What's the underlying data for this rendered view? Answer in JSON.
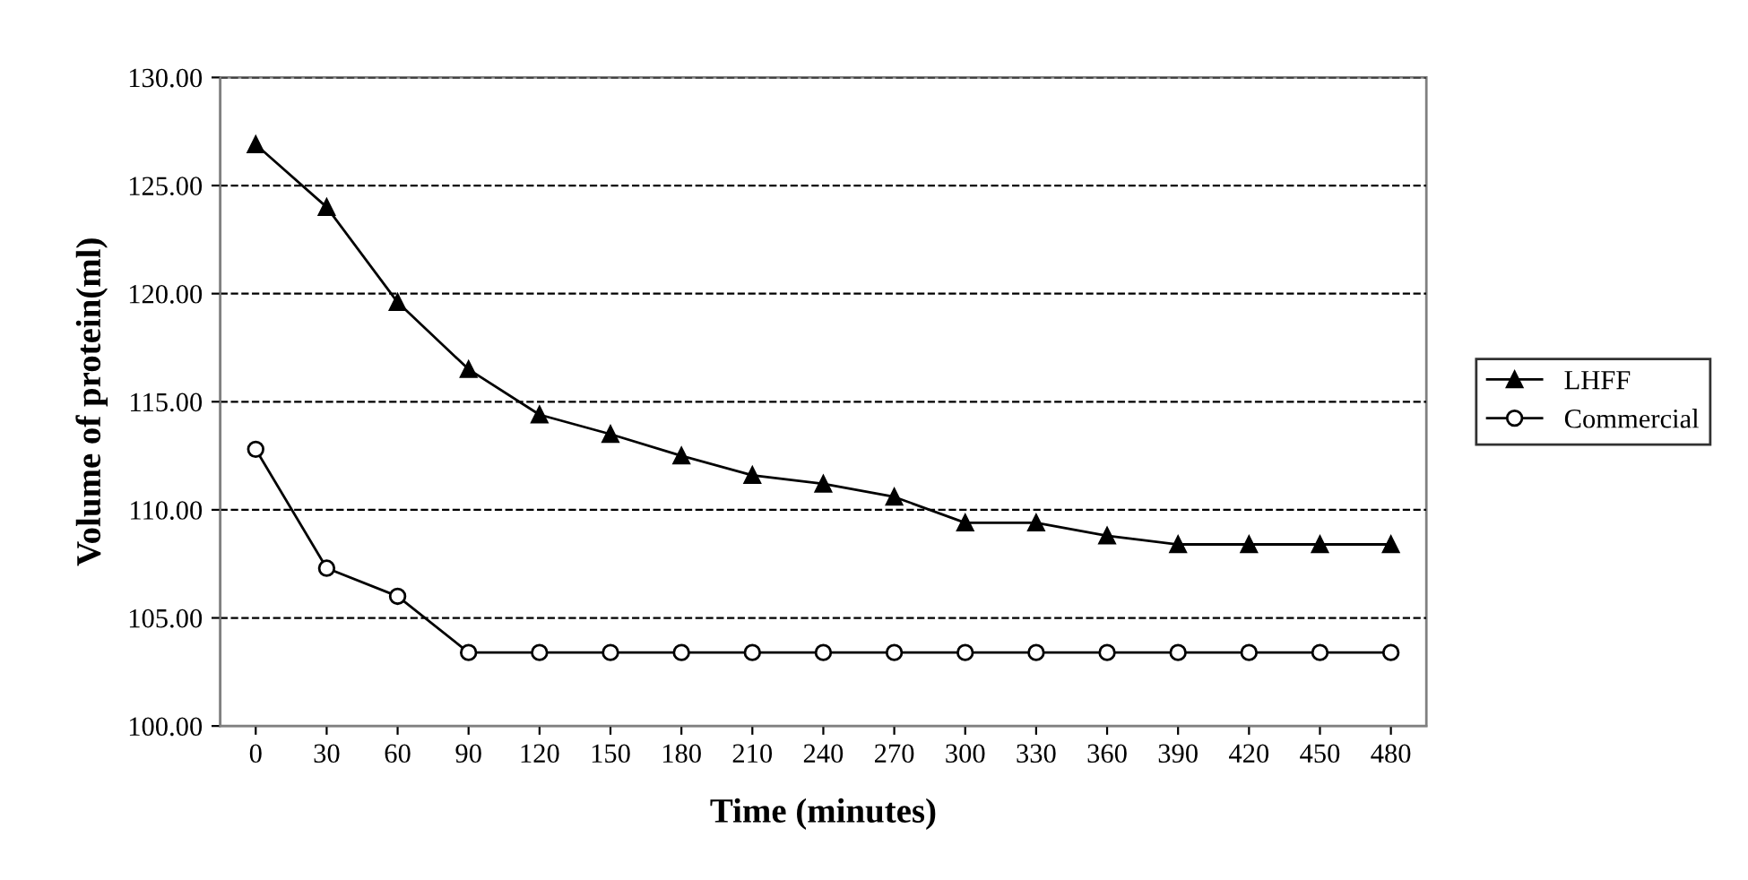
{
  "chart_data": {
    "type": "line",
    "xlabel": "Time (minutes)",
    "ylabel": "Volume of protein(ml)",
    "categories": [
      "0",
      "30",
      "60",
      "90",
      "120",
      "150",
      "180",
      "210",
      "240",
      "270",
      "300",
      "330",
      "360",
      "390",
      "420",
      "450",
      "480"
    ],
    "series": [
      {
        "name": "LHFF",
        "color": "#000000",
        "marker": "triangle",
        "values": [
          126.9,
          124.0,
          119.6,
          116.5,
          114.4,
          113.5,
          112.5,
          111.6,
          111.2,
          110.6,
          109.4,
          109.4,
          108.8,
          108.4,
          108.4,
          108.4,
          108.4
        ]
      },
      {
        "name": "Commercial",
        "color": "#000000",
        "marker": "circle",
        "values": [
          112.8,
          107.3,
          106.0,
          103.4,
          103.4,
          103.4,
          103.4,
          103.4,
          103.4,
          103.4,
          103.4,
          103.4,
          103.4,
          103.4,
          103.4,
          103.4,
          103.4
        ]
      }
    ],
    "ylim": [
      100,
      130
    ],
    "yticks": [
      {
        "value": 100,
        "label": "100.00"
      },
      {
        "value": 105,
        "label": "105.00"
      },
      {
        "value": 110,
        "label": "110.00"
      },
      {
        "value": 115,
        "label": "115.00"
      },
      {
        "value": 120,
        "label": "120.00"
      },
      {
        "value": 125,
        "label": "125.00"
      },
      {
        "value": 130,
        "label": "130.00"
      }
    ],
    "grid": "y",
    "legend": "right",
    "line_style": "solid"
  }
}
